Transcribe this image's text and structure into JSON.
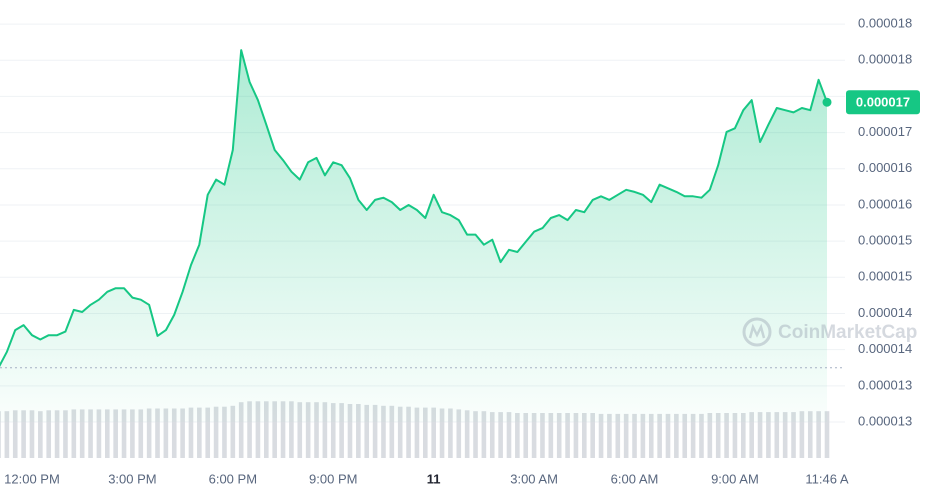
{
  "chart_data": {
    "type": "line",
    "color": "#16c784",
    "grid": true,
    "watermark": "CoinMarketCap",
    "price_tag": "0.000017",
    "values": [
      1.325e-05,
      1.347e-05,
      1.377e-05,
      1.384e-05,
      1.37e-05,
      1.364e-05,
      1.37e-05,
      1.37e-05,
      1.375e-05,
      1.405e-05,
      1.402e-05,
      1.412e-05,
      1.419e-05,
      1.43e-05,
      1.435e-05,
      1.435e-05,
      1.422e-05,
      1.419e-05,
      1.412e-05,
      1.369e-05,
      1.377e-05,
      1.398e-05,
      1.43e-05,
      1.467e-05,
      1.495e-05,
      1.564e-05,
      1.585e-05,
      1.578e-05,
      1.626e-05,
      1.764e-05,
      1.72e-05,
      1.695e-05,
      1.661e-05,
      1.626e-05,
      1.612e-05,
      1.596e-05,
      1.585e-05,
      1.609e-05,
      1.615e-05,
      1.591e-05,
      1.609e-05,
      1.605e-05,
      1.587e-05,
      1.557e-05,
      1.543e-05,
      1.557e-05,
      1.56e-05,
      1.554e-05,
      1.543e-05,
      1.55e-05,
      1.543e-05,
      1.532e-05,
      1.564e-05,
      1.54e-05,
      1.536e-05,
      1.529e-05,
      1.509e-05,
      1.509e-05,
      1.495e-05,
      1.502e-05,
      1.471e-05,
      1.488e-05,
      1.485e-05,
      1.499e-05,
      1.513e-05,
      1.518e-05,
      1.532e-05,
      1.536e-05,
      1.529e-05,
      1.543e-05,
      1.54e-05,
      1.557e-05,
      1.562e-05,
      1.557e-05,
      1.564e-05,
      1.571e-05,
      1.568e-05,
      1.564e-05,
      1.554e-05,
      1.578e-05,
      1.573e-05,
      1.568e-05,
      1.562e-05,
      1.562e-05,
      1.56e-05,
      1.571e-05,
      1.605e-05,
      1.651e-05,
      1.656e-05,
      1.681e-05,
      1.695e-05,
      1.637e-05,
      1.661e-05,
      1.684e-05,
      1.681e-05,
      1.678e-05,
      1.684e-05,
      1.681e-05,
      1.723e-05,
      1.692e-05
    ],
    "volume": {
      "color": "#d9dce1",
      "ylim": [
        0,
        70
      ],
      "values": [
        52,
        52,
        53,
        53,
        53,
        52,
        53,
        53,
        53,
        54,
        54,
        54,
        54,
        54,
        54,
        54,
        54,
        54,
        55,
        55,
        55,
        55,
        55,
        56,
        56,
        56,
        57,
        57,
        58,
        62,
        63,
        63,
        63,
        63,
        63,
        63,
        62,
        62,
        62,
        62,
        61,
        61,
        60,
        60,
        59,
        59,
        58,
        58,
        57,
        57,
        56,
        56,
        56,
        55,
        55,
        54,
        53,
        52,
        52,
        51,
        51,
        51,
        50,
        50,
        50,
        50,
        50,
        50,
        50,
        50,
        50,
        50,
        49,
        49,
        49,
        49,
        49,
        49,
        49,
        49,
        49,
        49,
        49,
        49,
        49,
        50,
        50,
        50,
        50,
        50,
        51,
        51,
        51,
        51,
        51,
        51,
        52,
        52,
        52,
        52
      ]
    },
    "xlim": [
      0,
      99
    ],
    "xticks": [
      {
        "value": 4,
        "label": "12:00 PM"
      },
      {
        "value": 16,
        "label": "3:00 PM"
      },
      {
        "value": 28,
        "label": "6:00 PM"
      },
      {
        "value": 40,
        "label": "9:00 PM"
      },
      {
        "value": 52,
        "label": "11"
      },
      {
        "value": 64,
        "label": "3:00 AM"
      },
      {
        "value": 76,
        "label": "6:00 AM"
      },
      {
        "value": 88,
        "label": "9:00 AM"
      },
      {
        "value": 99,
        "label": "11:46 A"
      }
    ],
    "ylim": [
      1.25e-05,
      1.825e-05
    ],
    "yticks": [
      {
        "value": 1.8e-05,
        "label": "0.000018"
      },
      {
        "value": 1.75e-05,
        "label": "0.000018"
      },
      {
        "value": 1.7e-05,
        "label": "0.000017"
      },
      {
        "value": 1.65e-05,
        "label": "0.000017"
      },
      {
        "value": 1.6e-05,
        "label": "0.000016"
      },
      {
        "value": 1.55e-05,
        "label": "0.000016"
      },
      {
        "value": 1.5e-05,
        "label": "0.000015"
      },
      {
        "value": 1.45e-05,
        "label": "0.000015"
      },
      {
        "value": 1.4e-05,
        "label": "0.000014"
      },
      {
        "value": 1.35e-05,
        "label": "0.000014"
      },
      {
        "value": 1.3e-05,
        "label": "0.000013"
      },
      {
        "value": 1.25e-05,
        "label": "0.000013"
      }
    ]
  }
}
